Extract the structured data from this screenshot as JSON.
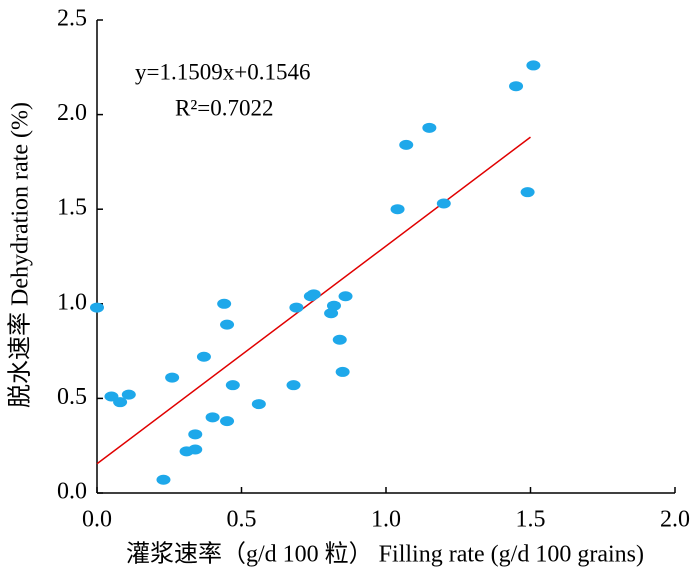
{
  "chart_data": {
    "type": "scatter",
    "x_label": "灌浆速率（g/d 100 粒） Filling rate (g/d 100 grains)",
    "y_label": "脱水速率 Dehydration rate (%)",
    "annotations": [
      "y=1.1509x+0.1546",
      "R²=0.7022"
    ],
    "series": [
      {
        "color": "#1ea8ea",
        "x": [
          0.0,
          0.05,
          0.08,
          0.11,
          0.23,
          0.26,
          0.31,
          0.34,
          0.34,
          0.37,
          0.4,
          0.44,
          0.45,
          0.45,
          0.47,
          0.56,
          0.68,
          0.69,
          0.74,
          0.75,
          0.81,
          0.82,
          0.84,
          0.85,
          0.86,
          1.04,
          1.07,
          1.15,
          1.2,
          1.45,
          1.49,
          1.51
        ],
        "values": [
          0.98,
          0.51,
          0.48,
          0.52,
          0.07,
          0.61,
          0.22,
          0.23,
          0.31,
          0.72,
          0.4,
          1.0,
          0.38,
          0.89,
          0.57,
          0.47,
          0.57,
          0.98,
          1.04,
          1.05,
          0.95,
          0.99,
          0.81,
          0.64,
          1.04,
          1.5,
          1.84,
          1.93,
          1.53,
          2.15,
          1.59,
          2.26
        ]
      }
    ],
    "trendline": {
      "color": "#e00000",
      "x": [
        0,
        1.5
      ],
      "y": [
        0.1546,
        1.881
      ]
    },
    "xlim": [
      0,
      2.0
    ],
    "ylim": [
      0,
      2.5
    ],
    "xticks": [
      {
        "value": 0,
        "label": "0.0"
      },
      {
        "value": 0.5,
        "label": "0.5"
      },
      {
        "value": 1.0,
        "label": "1.0"
      },
      {
        "value": 1.5,
        "label": "1.5"
      },
      {
        "value": 2.0,
        "label": "2.0"
      }
    ],
    "yticks": [
      {
        "value": 0,
        "label": "0.0"
      },
      {
        "value": 0.5,
        "label": "0.5"
      },
      {
        "value": 1.0,
        "label": "1.0"
      },
      {
        "value": 1.5,
        "label": "1.5"
      },
      {
        "value": 2.0,
        "label": "2.0"
      },
      {
        "value": 2.5,
        "label": "2.5"
      }
    ]
  }
}
